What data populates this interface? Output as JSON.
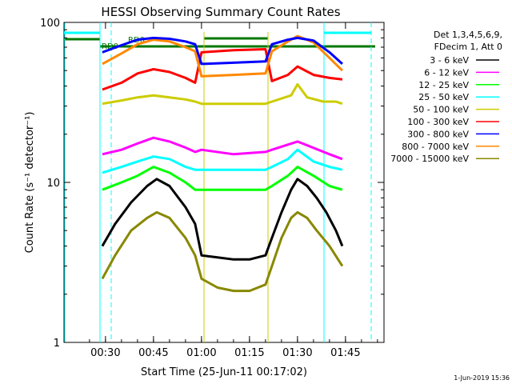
{
  "chart_data": {
    "type": "line",
    "title": "HESSI Observing Summary Count Rates",
    "xlabel": "Start Time (25-Jun-11 00:17:02)",
    "ylabel": "Count Rate (s⁻¹ detector⁻¹)",
    "y_scale": "log",
    "ylim": [
      1,
      100
    ],
    "y_tick_labels": [
      "1",
      "10",
      "100"
    ],
    "x_tick_labels": [
      "00:30",
      "00:45",
      "01:00",
      "01:15",
      "01:30",
      "01:45"
    ],
    "legend_header": [
      "Det 1,3,4,5,6,9,",
      "FDecim 1, Att 0"
    ],
    "legend_placement": "right",
    "annotations": [
      "RD0",
      "RD0"
    ],
    "footer_stamp": "1-Jun-2019 15:36",
    "series": [
      {
        "name": "3 - 6 keV",
        "color": "#000000",
        "x": [
          "00:29",
          "00:33",
          "00:38",
          "00:43",
          "00:46",
          "00:50",
          "00:55",
          "00:58",
          "01:00",
          "01:05",
          "01:10",
          "01:15",
          "01:20",
          "01:22",
          "01:25",
          "01:28",
          "01:30",
          "01:33",
          "01:36",
          "01:39",
          "01:42",
          "01:44"
        ],
        "y": [
          4,
          5.5,
          7.5,
          9.5,
          10.5,
          9.5,
          7,
          5.5,
          3.5,
          3.4,
          3.3,
          3.3,
          3.5,
          4.5,
          6.5,
          9,
          10.5,
          9.5,
          8,
          6.5,
          5,
          4
        ]
      },
      {
        "name": "6 - 12 keV",
        "color": "#ff00ff",
        "x": [
          "00:29",
          "00:35",
          "00:40",
          "00:45",
          "00:50",
          "00:55",
          "00:58",
          "01:00",
          "01:10",
          "01:20",
          "01:22",
          "01:30",
          "01:40",
          "01:44"
        ],
        "y": [
          15,
          16,
          17.5,
          19,
          18,
          16.5,
          15.5,
          16,
          15,
          15.5,
          16,
          18,
          15,
          14
        ]
      },
      {
        "name": "12 - 25 keV",
        "color": "#00ff00",
        "x": [
          "00:29",
          "00:35",
          "00:40",
          "00:45",
          "00:50",
          "00:55",
          "00:58",
          "01:00",
          "01:10",
          "01:20",
          "01:22",
          "01:27",
          "01:30",
          "01:35",
          "01:40",
          "01:44"
        ],
        "y": [
          9,
          10,
          11,
          12.5,
          11.5,
          10,
          9,
          9,
          9,
          9,
          9.5,
          11,
          12.5,
          11,
          9.5,
          9
        ]
      },
      {
        "name": "25 - 50 keV",
        "color": "#00ffff",
        "x": [
          "00:29",
          "00:35",
          "00:40",
          "00:45",
          "00:50",
          "00:55",
          "00:58",
          "01:00",
          "01:10",
          "01:20",
          "01:22",
          "01:27",
          "01:30",
          "01:35",
          "01:40",
          "01:44"
        ],
        "y": [
          11.5,
          12.5,
          13.5,
          14.5,
          14,
          12.5,
          12,
          12,
          12,
          12,
          12.5,
          14,
          16,
          13.5,
          12.5,
          12
        ]
      },
      {
        "name": "50 - 100 keV",
        "color": "#cccc00",
        "x": [
          "00:29",
          "00:35",
          "00:40",
          "00:45",
          "00:50",
          "00:55",
          "00:58",
          "01:00",
          "01:10",
          "01:20",
          "01:22",
          "01:28",
          "01:30",
          "01:33",
          "01:38",
          "01:42",
          "01:44"
        ],
        "y": [
          31,
          32.5,
          34,
          35,
          34,
          33,
          32,
          31,
          31,
          31,
          32,
          35,
          41,
          34,
          32,
          32,
          31
        ]
      },
      {
        "name": "100 - 300 keV",
        "color": "#ff0000",
        "x": [
          "00:29",
          "00:35",
          "00:40",
          "00:45",
          "00:50",
          "00:55",
          "00:58",
          "01:00",
          "01:10",
          "01:20",
          "01:22",
          "01:27",
          "01:30",
          "01:35",
          "01:40",
          "01:44"
        ],
        "y": [
          38,
          42,
          48,
          51,
          49,
          45,
          42,
          65,
          67,
          68,
          43,
          47,
          53,
          47,
          45,
          44
        ]
      },
      {
        "name": "300 - 800 keV",
        "color": "#0000ff",
        "x": [
          "00:29",
          "00:35",
          "00:40",
          "00:45",
          "00:50",
          "00:55",
          "00:58",
          "01:00",
          "01:10",
          "01:20",
          "01:22",
          "01:27",
          "01:30",
          "01:35",
          "01:40",
          "01:44"
        ],
        "y": [
          65,
          72,
          78,
          80,
          79,
          76,
          73,
          55,
          56,
          57,
          73,
          78,
          80,
          77,
          65,
          55
        ]
      },
      {
        "name": "800 - 7000 keV",
        "color": "#ff8800",
        "x": [
          "00:29",
          "00:35",
          "00:40",
          "00:45",
          "00:50",
          "00:55",
          "00:58",
          "01:00",
          "01:10",
          "01:20",
          "01:22",
          "01:27",
          "01:30",
          "01:35",
          "01:40",
          "01:44"
        ],
        "y": [
          55,
          64,
          73,
          78,
          76,
          70,
          66,
          46,
          47,
          48,
          66,
          76,
          82,
          75,
          60,
          50
        ]
      },
      {
        "name": "7000 - 15000 keV",
        "color": "#888800",
        "x": [
          "00:29",
          "00:33",
          "00:38",
          "00:43",
          "00:46",
          "00:50",
          "00:55",
          "00:58",
          "01:00",
          "01:05",
          "01:10",
          "01:15",
          "01:20",
          "01:22",
          "01:25",
          "01:28",
          "01:30",
          "01:33",
          "01:36",
          "01:40",
          "01:44"
        ],
        "y": [
          2.5,
          3.5,
          5,
          6,
          6.5,
          6,
          4.5,
          3.5,
          2.5,
          2.2,
          2.1,
          2.1,
          2.3,
          3,
          4.5,
          6,
          6.5,
          6,
          5,
          4,
          3
        ]
      }
    ]
  }
}
